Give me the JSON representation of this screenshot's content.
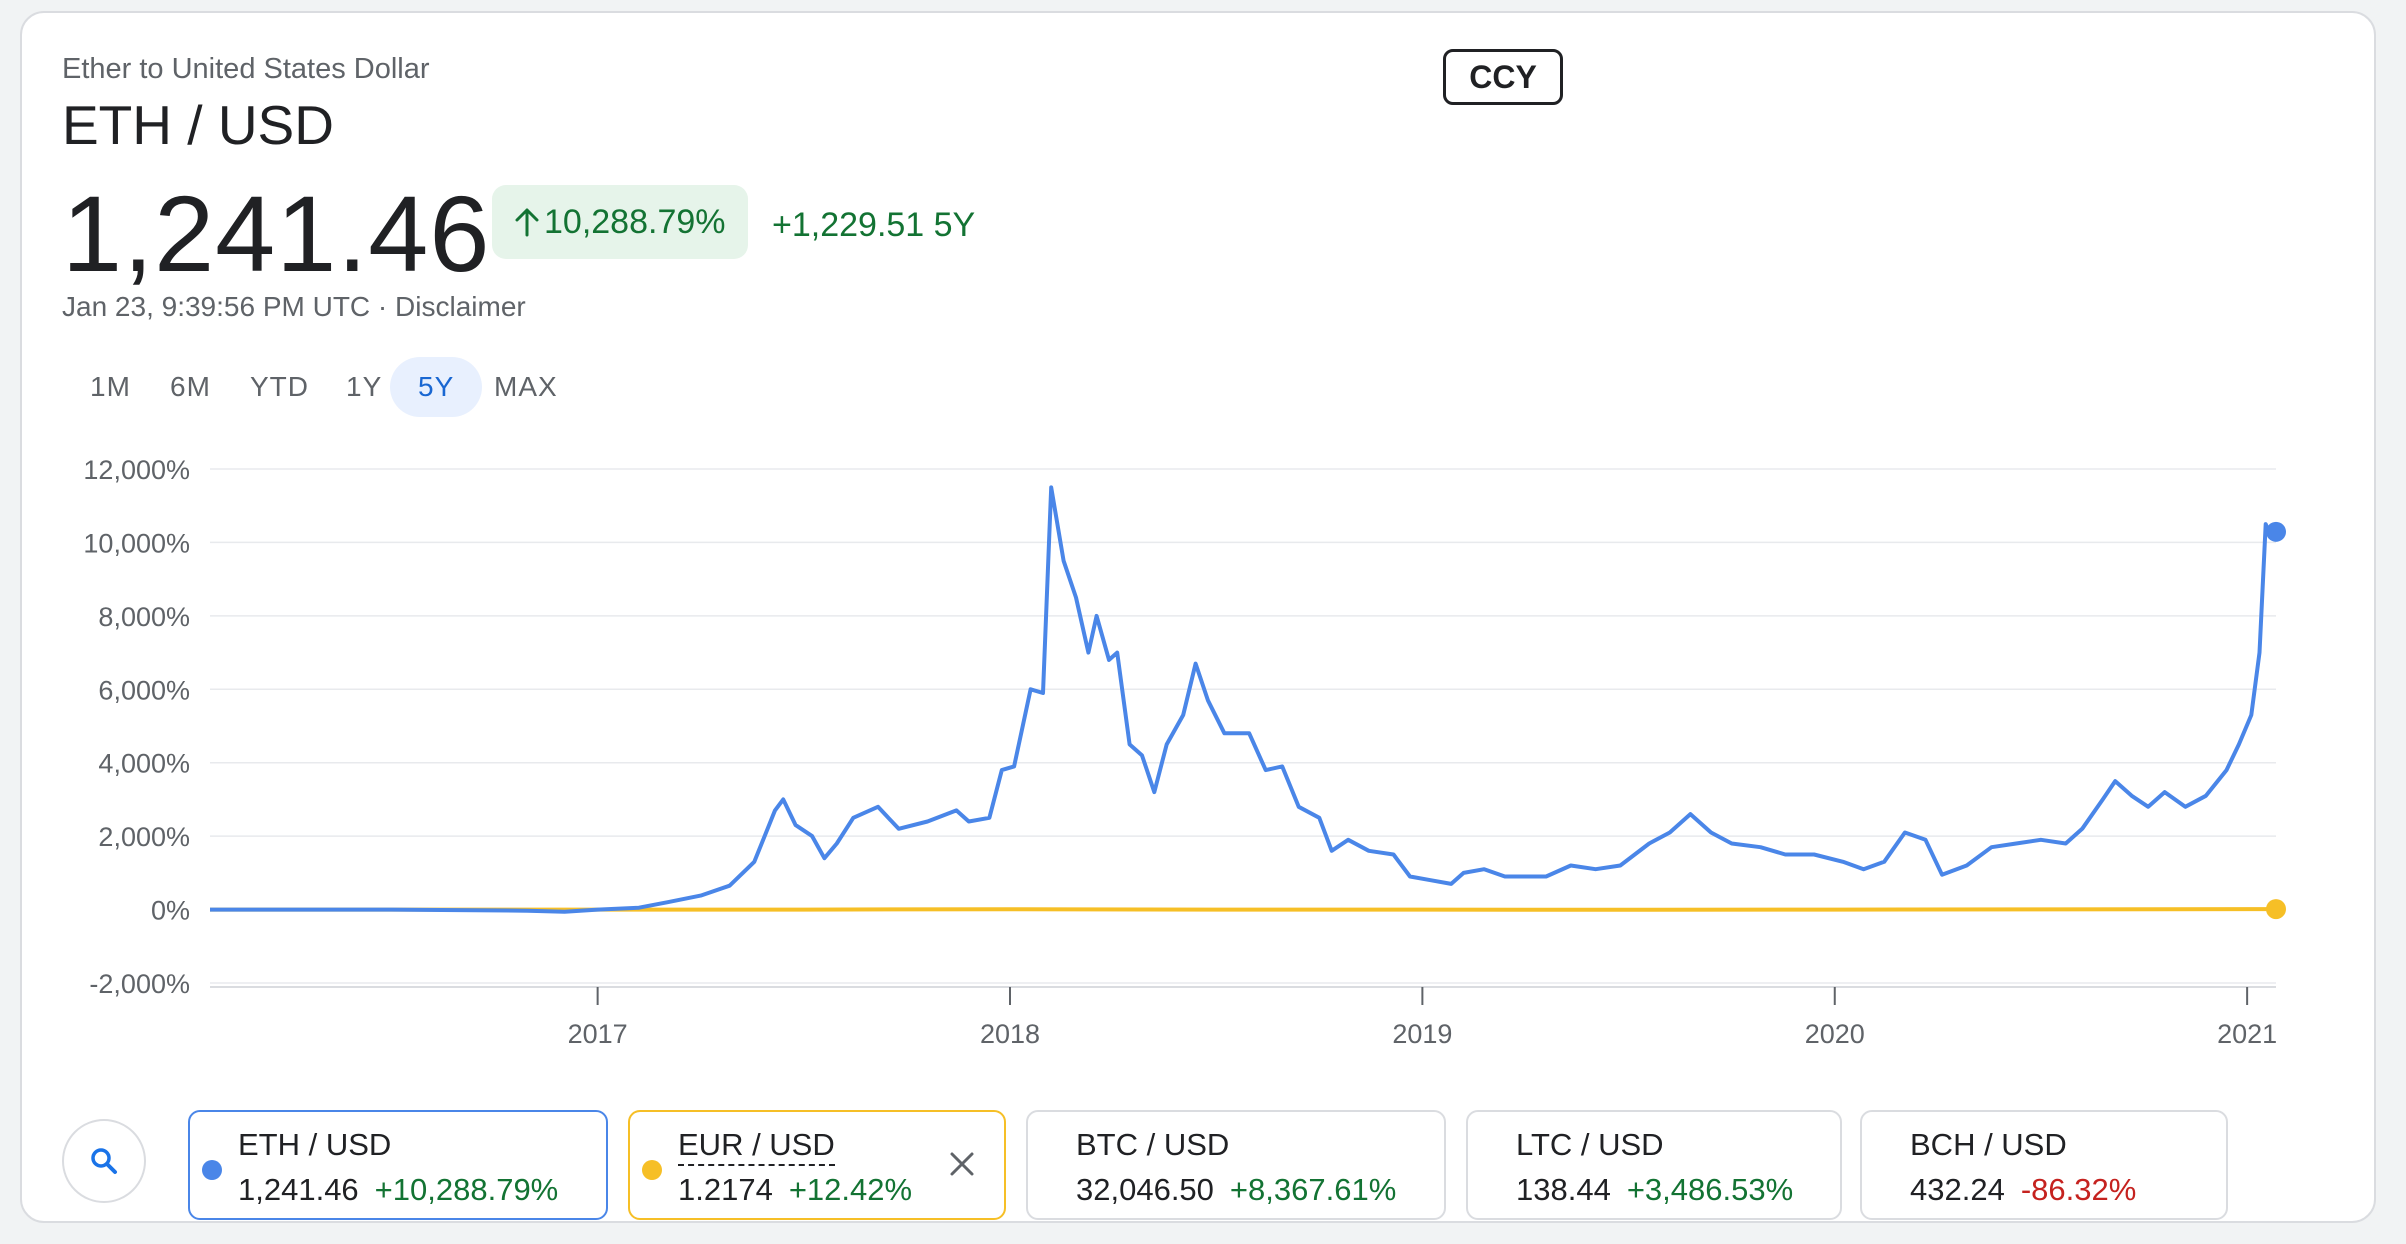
{
  "header": {
    "subtitle": "Ether to United States Dollar",
    "pair": "ETH / USD",
    "ccy_label": "CCY",
    "price": "1,241.46",
    "change_pct": "10,288.79%",
    "change_arrow_icon": "arrow-up-icon",
    "change_abs": "+1,229.51 5Y",
    "timestamp": "Jan 23, 9:39:56 PM UTC",
    "separator": " · ",
    "disclaimer": "Disclaimer"
  },
  "ranges": {
    "items": [
      "1M",
      "6M",
      "YTD",
      "1Y",
      "5Y",
      "MAX"
    ],
    "active": "5Y"
  },
  "colors": {
    "eth": "#4a86e8",
    "eur": "#f6bf26",
    "positive": "#137333",
    "negative": "#c5221f",
    "grid": "#e8eaed"
  },
  "chart_data": {
    "type": "line",
    "y_ticks": [
      "12,000%",
      "10,000%",
      "8,000%",
      "6,000%",
      "4,000%",
      "2,000%",
      "0%",
      "-2,000%"
    ],
    "x_ticks": [
      "2017",
      "2018",
      "2019",
      "2020",
      "2021"
    ],
    "ylim": [
      -2000,
      12000
    ],
    "xlim": [
      2016.06,
      2021.07
    ],
    "grid": true,
    "series": [
      {
        "name": "ETH / USD",
        "color": "#4a86e8",
        "points": [
          [
            2016.06,
            0
          ],
          [
            2016.5,
            0
          ],
          [
            2016.83,
            -30
          ],
          [
            2016.92,
            -60
          ],
          [
            2017.0,
            0
          ],
          [
            2017.1,
            50
          ],
          [
            2017.17,
            200
          ],
          [
            2017.25,
            380
          ],
          [
            2017.32,
            650
          ],
          [
            2017.38,
            1300
          ],
          [
            2017.43,
            2700
          ],
          [
            2017.45,
            3000
          ],
          [
            2017.48,
            2300
          ],
          [
            2017.52,
            2000
          ],
          [
            2017.55,
            1400
          ],
          [
            2017.58,
            1800
          ],
          [
            2017.62,
            2500
          ],
          [
            2017.68,
            2800
          ],
          [
            2017.73,
            2200
          ],
          [
            2017.8,
            2400
          ],
          [
            2017.87,
            2700
          ],
          [
            2017.9,
            2400
          ],
          [
            2017.95,
            2500
          ],
          [
            2017.98,
            3800
          ],
          [
            2018.01,
            3900
          ],
          [
            2018.05,
            6000
          ],
          [
            2018.08,
            5900
          ],
          [
            2018.1,
            11500
          ],
          [
            2018.13,
            9500
          ],
          [
            2018.16,
            8500
          ],
          [
            2018.19,
            7000
          ],
          [
            2018.21,
            8000
          ],
          [
            2018.24,
            6800
          ],
          [
            2018.26,
            7000
          ],
          [
            2018.29,
            4500
          ],
          [
            2018.32,
            4200
          ],
          [
            2018.35,
            3200
          ],
          [
            2018.38,
            4500
          ],
          [
            2018.42,
            5300
          ],
          [
            2018.45,
            6700
          ],
          [
            2018.48,
            5700
          ],
          [
            2018.52,
            4800
          ],
          [
            2018.58,
            4800
          ],
          [
            2018.62,
            3800
          ],
          [
            2018.66,
            3900
          ],
          [
            2018.7,
            2800
          ],
          [
            2018.75,
            2500
          ],
          [
            2018.78,
            1600
          ],
          [
            2018.82,
            1900
          ],
          [
            2018.87,
            1600
          ],
          [
            2018.93,
            1500
          ],
          [
            2018.97,
            900
          ],
          [
            2019.02,
            800
          ],
          [
            2019.07,
            700
          ],
          [
            2019.1,
            1000
          ],
          [
            2019.15,
            1100
          ],
          [
            2019.2,
            900
          ],
          [
            2019.3,
            900
          ],
          [
            2019.36,
            1200
          ],
          [
            2019.42,
            1100
          ],
          [
            2019.48,
            1200
          ],
          [
            2019.55,
            1800
          ],
          [
            2019.6,
            2100
          ],
          [
            2019.65,
            2600
          ],
          [
            2019.7,
            2100
          ],
          [
            2019.75,
            1800
          ],
          [
            2019.82,
            1700
          ],
          [
            2019.88,
            1500
          ],
          [
            2019.95,
            1500
          ],
          [
            2020.02,
            1300
          ],
          [
            2020.07,
            1100
          ],
          [
            2020.12,
            1300
          ],
          [
            2020.17,
            2100
          ],
          [
            2020.22,
            1900
          ],
          [
            2020.26,
            950
          ],
          [
            2020.32,
            1200
          ],
          [
            2020.38,
            1700
          ],
          [
            2020.44,
            1800
          ],
          [
            2020.5,
            1900
          ],
          [
            2020.56,
            1800
          ],
          [
            2020.6,
            2200
          ],
          [
            2020.65,
            3000
          ],
          [
            2020.68,
            3500
          ],
          [
            2020.72,
            3100
          ],
          [
            2020.76,
            2800
          ],
          [
            2020.8,
            3200
          ],
          [
            2020.85,
            2800
          ],
          [
            2020.9,
            3100
          ],
          [
            2020.95,
            3800
          ],
          [
            2020.98,
            4500
          ],
          [
            2021.01,
            5300
          ],
          [
            2021.03,
            7000
          ],
          [
            2021.045,
            10500
          ],
          [
            2021.055,
            10200
          ],
          [
            2021.07,
            10289
          ]
        ]
      },
      {
        "name": "EUR / USD",
        "color": "#f6bf26",
        "points": [
          [
            2016.06,
            0
          ],
          [
            2016.5,
            0
          ],
          [
            2017.0,
            0
          ],
          [
            2017.5,
            0
          ],
          [
            2018.0,
            10
          ],
          [
            2018.5,
            0
          ],
          [
            2019.0,
            0
          ],
          [
            2019.5,
            -5
          ],
          [
            2020.0,
            0
          ],
          [
            2020.5,
            5
          ],
          [
            2021.0,
            12
          ],
          [
            2021.07,
            12.42
          ]
        ]
      }
    ]
  },
  "compare": {
    "search_icon": "search-icon",
    "cards": [
      {
        "name": "ETH / USD",
        "value": "1,241.46",
        "change": "+10,288.79%",
        "dir": "pos",
        "dot": "#4a86e8",
        "selected": true
      },
      {
        "name": "EUR / USD",
        "value": "1.2174",
        "change": "+12.42%",
        "dir": "pos",
        "dot": "#f6bf26",
        "selected": true,
        "removable": true
      },
      {
        "name": "BTC / USD",
        "value": "32,046.50",
        "change": "+8,367.61%",
        "dir": "pos"
      },
      {
        "name": "LTC / USD",
        "value": "138.44",
        "change": "+3,486.53%",
        "dir": "pos"
      },
      {
        "name": "BCH / USD",
        "value": "432.24",
        "change": "-86.32%",
        "dir": "neg"
      }
    ]
  }
}
